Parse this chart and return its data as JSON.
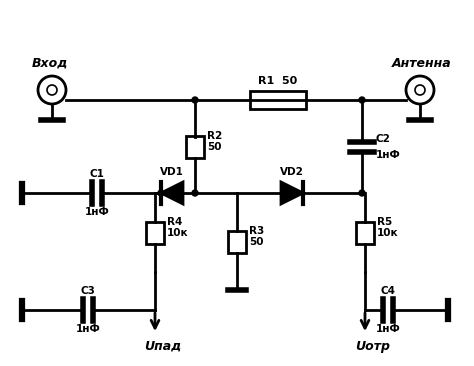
{
  "background": "#ffffff",
  "line_color": "#000000",
  "line_width": 2.0,
  "labels": {
    "vkhod": "Вход",
    "antenna": "Антенна",
    "R1": "R1  50",
    "R2": "R2\n50",
    "R3": "R3\n50",
    "R4": "R4\n10к",
    "R5": "R5\n10к",
    "C1": "C1",
    "C2": "C2",
    "C3": "C3",
    "C4": "C4",
    "VD1": "VD1",
    "VD2": "VD2",
    "nF": "1нФ",
    "Upad": "Uпад",
    "Uotr": "Uотр"
  }
}
